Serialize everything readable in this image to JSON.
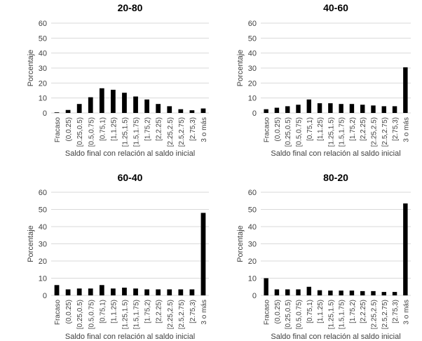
{
  "figure": {
    "colors": {
      "bar": "#000000",
      "grid": "#d9d9d9",
      "text": "#404040",
      "title": "#000000"
    }
  },
  "chart_data": [
    {
      "type": "bar",
      "title": "20-80",
      "xlabel": "Saldo final con relación al saldo inicial",
      "ylabel": "Porcentaje",
      "ylim": [
        0,
        60
      ],
      "yticks": [
        0,
        10,
        20,
        30,
        40,
        50,
        60
      ],
      "grid": true,
      "categories": [
        "Fracaso",
        "(0,0.25)",
        "[0.25,0.5)",
        "[0.5,0.75)",
        "[0.75,1)",
        "[1,1.25)",
        "[1.25,1.5)",
        "[1.5,1.75)",
        "[1.75,2)",
        "[2,2.25)",
        "[2.25,2.5)",
        "[2.5,2.75)",
        "[2.75,3)",
        "3 o más"
      ],
      "values": [
        0.4,
        2,
        6,
        10.5,
        16.5,
        15.5,
        13.5,
        11,
        9,
        6,
        4.5,
        2.5,
        1.8,
        3
      ]
    },
    {
      "type": "bar",
      "title": "40-60",
      "xlabel": "Saldo final con relación al saldo inicial",
      "ylabel": "Porcentaje",
      "ylim": [
        0,
        60
      ],
      "yticks": [
        0,
        10,
        20,
        30,
        40,
        50,
        60
      ],
      "grid": true,
      "categories": [
        "Fracaso",
        "(0,0.25)",
        "[0.25,0.5)",
        "[0.5,0.75)",
        "[0.75,1)",
        "[1,1.25)",
        "[1.25,1.5)",
        "[1.5,1.75)",
        "[1.75,2)",
        "[2,2.25)",
        "[2.25,2.5)",
        "[2.5,2.75)",
        "[2.75,3)",
        "3 o más"
      ],
      "values": [
        2.5,
        3.5,
        4.5,
        5.5,
        9,
        6.5,
        6.5,
        6,
        6,
        5.5,
        5,
        4.5,
        4.5,
        30.5
      ]
    },
    {
      "type": "bar",
      "title": "60-40",
      "xlabel": "Saldo final con relación al saldo inicial",
      "ylabel": "Porcentaje",
      "ylim": [
        0,
        60
      ],
      "yticks": [
        0,
        10,
        20,
        30,
        40,
        50,
        60
      ],
      "grid": true,
      "categories": [
        "Fracaso",
        "(0,0.25)",
        "[0.25,0.5)",
        "[0.5,0.75)",
        "[0.75,1)",
        "[1,1.25)",
        "[1.25,1.5)",
        "[1.5,1.75)",
        "[1.75,2)",
        "[2,2.25)",
        "[2.25,2.5)",
        "[2.5,2.75)",
        "[2.75,3)",
        "3 o más"
      ],
      "values": [
        6,
        3.5,
        4,
        4,
        6,
        4,
        4.5,
        4,
        3.5,
        3.5,
        3.5,
        3.5,
        3.5,
        48
      ]
    },
    {
      "type": "bar",
      "title": "80-20",
      "xlabel": "Saldo final con relación al saldo inicial",
      "ylabel": "Porcentaje",
      "ylim": [
        0,
        60
      ],
      "yticks": [
        0,
        10,
        20,
        30,
        40,
        50,
        60
      ],
      "grid": true,
      "categories": [
        "Fracaso",
        "(0,0.25)",
        "[0.25,0.5)",
        "[0.5,0.75)",
        "[0.75,1)",
        "[1,1.25)",
        "[1.25,1.5)",
        "[1.5,1.75)",
        "[1.75,2)",
        "[2,2.25)",
        "[2.25,2.5)",
        "[2.5,2.75)",
        "[2.75,3)",
        "3 o más"
      ],
      "values": [
        10,
        3.5,
        3.5,
        3.5,
        5,
        3,
        2.8,
        2.8,
        2.8,
        2.5,
        2.5,
        2,
        2,
        53.5
      ]
    }
  ]
}
